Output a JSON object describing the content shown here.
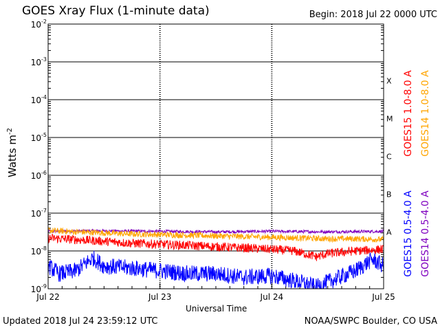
{
  "header": {
    "title": "GOES Xray Flux (1-minute data)",
    "begin": "Begin:  2018 Jul 22 0000 UTC"
  },
  "footer": {
    "updated": "Updated 2018 Jul 24 23:59:12 UTC",
    "credit": "NOAA/SWPC Boulder, CO USA"
  },
  "chart_data": {
    "type": "line",
    "title": "GOES Xray Flux (1-minute data)",
    "xlabel": "Universal Time",
    "ylabel": "Watts m",
    "ylabel_sup": "-2",
    "yscale": "log",
    "ylim": [
      1e-09,
      0.01
    ],
    "x_ticks": [
      "Jul 22",
      "Jul 23",
      "Jul 24",
      "Jul 25"
    ],
    "y_ticks": [
      {
        "base": "10",
        "exp": "-9"
      },
      {
        "base": "10",
        "exp": "-8"
      },
      {
        "base": "10",
        "exp": "-7"
      },
      {
        "base": "10",
        "exp": "-6"
      },
      {
        "base": "10",
        "exp": "-5"
      },
      {
        "base": "10",
        "exp": "-4"
      },
      {
        "base": "10",
        "exp": "-3"
      },
      {
        "base": "10",
        "exp": "-2"
      }
    ],
    "flare_classes": [
      {
        "label": "A",
        "level": 1e-08
      },
      {
        "label": "B",
        "level": 1e-07
      },
      {
        "label": "C",
        "level": 1e-06
      },
      {
        "label": "M",
        "level": 1e-05
      },
      {
        "label": "X",
        "level": 0.0001
      }
    ],
    "grid": true,
    "legend_position": "right",
    "series": [
      {
        "name": "GOES15 1.0-8.0 A",
        "color": "#ff0000",
        "points": [
          [
            0,
            2.2e-08
          ],
          [
            0.25,
            2e-08
          ],
          [
            0.5,
            1.8e-08
          ],
          [
            0.75,
            1.6e-08
          ],
          [
            1.0,
            1.5e-08
          ],
          [
            1.25,
            1.4e-08
          ],
          [
            1.5,
            1.3e-08
          ],
          [
            1.75,
            1.2e-08
          ],
          [
            2.0,
            1.1e-08
          ],
          [
            2.2,
            1e-08
          ],
          [
            2.4,
            7e-09
          ],
          [
            2.5,
            8.5e-09
          ],
          [
            2.75,
            1e-08
          ],
          [
            3.0,
            1.1e-08
          ]
        ]
      },
      {
        "name": "GOES14 1.0-8.0 A",
        "color": "#ffa500",
        "points": [
          [
            0,
            3.5e-08
          ],
          [
            0.25,
            3.2e-08
          ],
          [
            0.5,
            3e-08
          ],
          [
            0.75,
            2.8e-08
          ],
          [
            1.0,
            2.7e-08
          ],
          [
            1.25,
            2.6e-08
          ],
          [
            1.5,
            2.5e-08
          ],
          [
            1.75,
            2.4e-08
          ],
          [
            2.0,
            2.3e-08
          ],
          [
            2.25,
            2.2e-08
          ],
          [
            2.5,
            2.1e-08
          ],
          [
            2.75,
            2.1e-08
          ],
          [
            3.0,
            2e-08
          ]
        ]
      },
      {
        "name": "GOES15 0.5-4.0 A",
        "color": "#0000ff",
        "points": [
          [
            0,
            4e-09
          ],
          [
            0.1,
            2.5e-09
          ],
          [
            0.25,
            3e-09
          ],
          [
            0.4,
            6.5e-09
          ],
          [
            0.5,
            4e-09
          ],
          [
            0.75,
            3.5e-09
          ],
          [
            1.0,
            3e-09
          ],
          [
            1.25,
            2.5e-09
          ],
          [
            1.5,
            2.5e-09
          ],
          [
            1.75,
            2e-09
          ],
          [
            2.0,
            2.2e-09
          ],
          [
            2.25,
            1.5e-09
          ],
          [
            2.4,
            1.1e-09
          ],
          [
            2.5,
            1.5e-09
          ],
          [
            2.75,
            3e-09
          ],
          [
            2.9,
            6e-09
          ],
          [
            3.0,
            4e-09
          ]
        ]
      },
      {
        "name": "GOES14 0.5-4.0 A",
        "color": "#7f00bf",
        "points": [
          [
            0,
            3.3e-08
          ],
          [
            0.5,
            3.4e-08
          ],
          [
            1.0,
            3.3e-08
          ],
          [
            1.5,
            3.2e-08
          ],
          [
            2.0,
            3.3e-08
          ],
          [
            2.5,
            3.2e-08
          ],
          [
            3.0,
            3.3e-08
          ]
        ]
      }
    ]
  }
}
